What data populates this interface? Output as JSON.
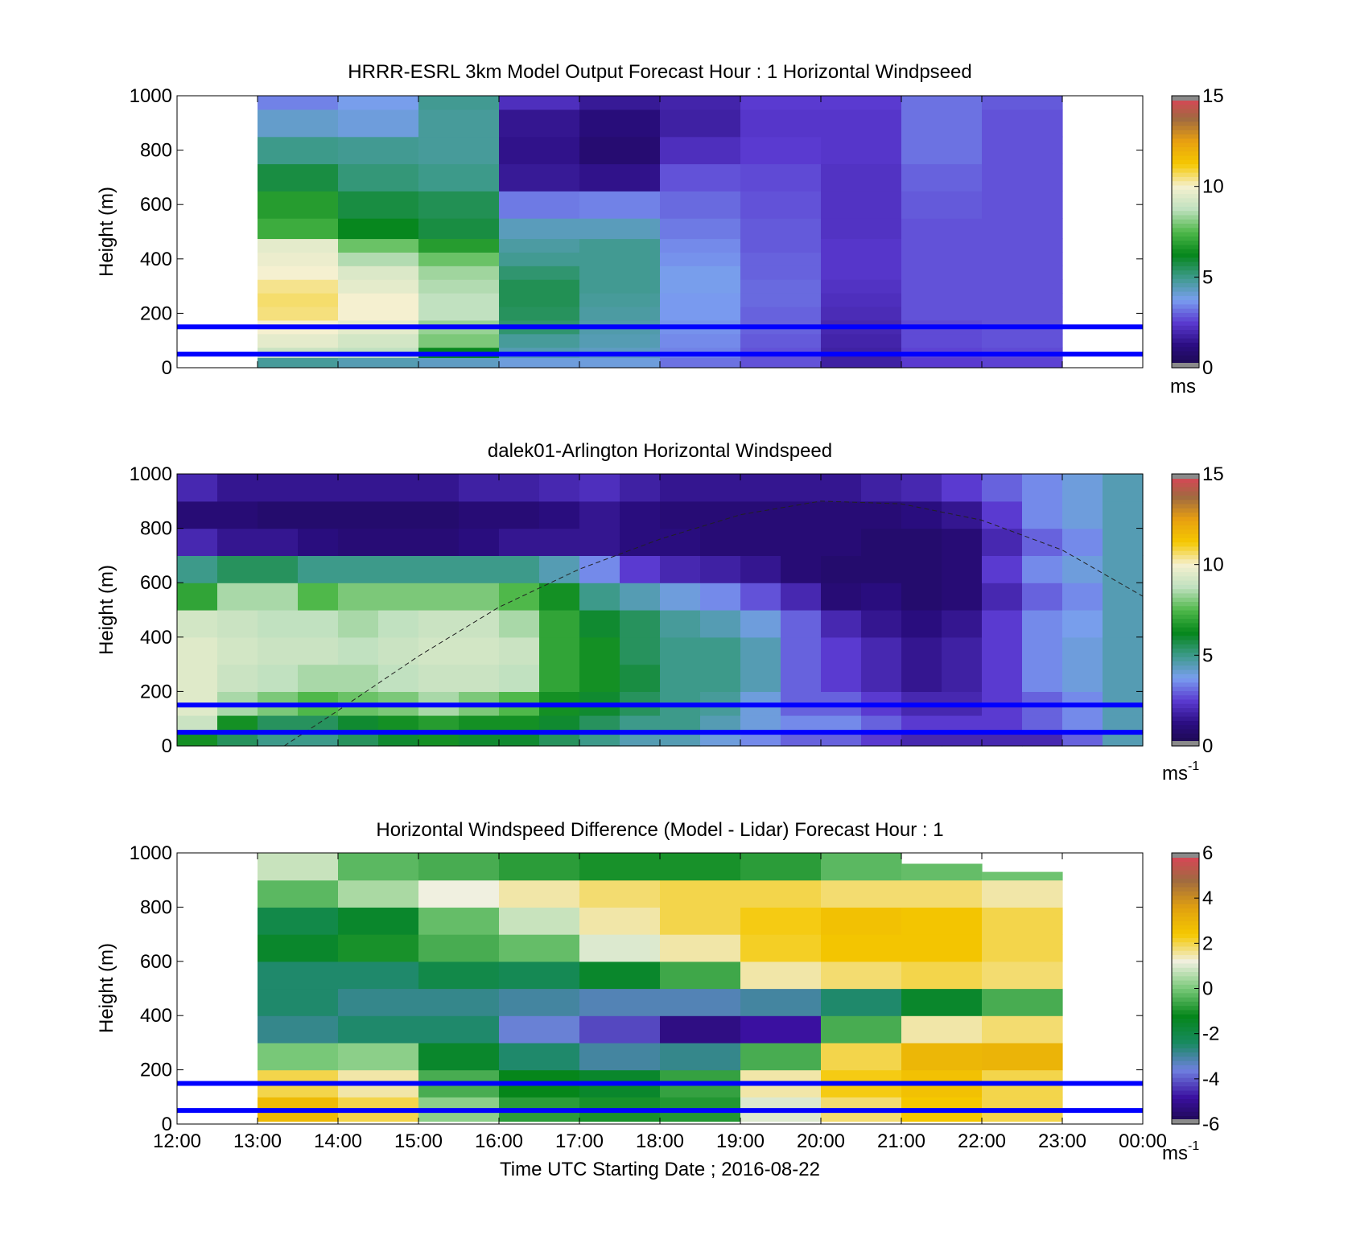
{
  "figure": {
    "xlabel": "Time UTC  Starting Date ; 2016-08-22",
    "x_tick_labels": [
      "12:00",
      "13:00",
      "14:00",
      "15:00",
      "16:00",
      "17:00",
      "18:00",
      "19:00",
      "20:00",
      "21:00",
      "22:00",
      "23:00",
      "00:00"
    ]
  },
  "colors": {
    "ref_line": "#0000ff",
    "speed_scale": [
      "#1a0a4a",
      "#2a0d80",
      "#5a3ad0",
      "#7a9ef0",
      "#3d9a8a",
      "#05861a",
      "#4fb84a",
      "#bfe0bf",
      "#f5f0d0",
      "#f5c800",
      "#e8a010",
      "#a06a40",
      "#e0405a"
    ],
    "diff_scale": [
      "#1a0a4a",
      "#3a10a0",
      "#7080e0",
      "#188a60",
      "#05861a",
      "#78c878",
      "#f0f0e0",
      "#f5c800",
      "#e0a010",
      "#a06a40",
      "#e0405a"
    ]
  },
  "chart_data": [
    {
      "id": "model",
      "type": "heatmap",
      "title": "HRRR-ESRL 3km Model Output   Forecast Hour : 1 Horizontal Windpseed",
      "ylabel": "Height (m)",
      "xlim": [
        "12:00",
        "00:00"
      ],
      "ylim": [
        0,
        1000
      ],
      "y_ticks": [
        0,
        200,
        400,
        600,
        800,
        1000
      ],
      "x_step_hours": 1,
      "columns_start": [
        "13:00",
        "14:00",
        "15:00",
        "16:00",
        "17:00",
        "18:00",
        "19:00",
        "20:00",
        "21:00",
        "22:00"
      ],
      "heights": [
        25,
        50,
        100,
        150,
        200,
        250,
        300,
        350,
        400,
        450,
        500,
        600,
        700,
        800,
        900,
        1000
      ],
      "values": [
        [
          4.8,
          4.5,
          4.3,
          4.0,
          4.0,
          3.2,
          2.8,
          1.8,
          2.5,
          2.6
        ],
        [
          9.0,
          8.8,
          6.2,
          4.5,
          4.3,
          3.4,
          2.8,
          1.8,
          2.6,
          2.7
        ],
        [
          9.6,
          9.2,
          8.0,
          4.8,
          4.5,
          3.5,
          2.9,
          1.9,
          2.7,
          2.8
        ],
        [
          10.0,
          9.6,
          8.3,
          5.3,
          4.6,
          3.6,
          3.0,
          2.0,
          2.7,
          2.8
        ],
        [
          10.5,
          10.0,
          8.8,
          5.5,
          4.7,
          3.7,
          3.0,
          2.1,
          2.8,
          2.8
        ],
        [
          10.6,
          10.0,
          8.8,
          5.6,
          4.8,
          3.7,
          3.1,
          2.2,
          2.8,
          2.8
        ],
        [
          10.4,
          9.6,
          8.6,
          5.6,
          4.9,
          3.8,
          3.1,
          2.3,
          2.8,
          2.8
        ],
        [
          10.0,
          9.4,
          8.4,
          5.3,
          4.9,
          3.8,
          3.0,
          2.4,
          2.8,
          2.8
        ],
        [
          9.8,
          8.6,
          7.8,
          4.9,
          4.9,
          3.6,
          3.0,
          2.4,
          2.8,
          2.8
        ],
        [
          9.6,
          7.8,
          6.8,
          4.7,
          4.9,
          3.5,
          2.9,
          2.4,
          2.8,
          2.8
        ],
        [
          7.2,
          6.2,
          5.8,
          4.4,
          4.4,
          3.3,
          2.9,
          2.3,
          2.8,
          2.8
        ],
        [
          6.8,
          5.8,
          5.6,
          3.3,
          3.4,
          3.1,
          2.8,
          2.3,
          2.9,
          2.8
        ],
        [
          5.8,
          5.2,
          5.0,
          1.6,
          1.4,
          2.8,
          2.7,
          2.3,
          3.0,
          2.8
        ],
        [
          5.0,
          4.9,
          4.8,
          1.4,
          0.9,
          2.2,
          2.5,
          2.4,
          3.2,
          2.8
        ],
        [
          4.2,
          4.0,
          4.8,
          1.5,
          1.1,
          1.8,
          2.4,
          2.4,
          3.2,
          2.8
        ],
        [
          3.4,
          3.8,
          4.9,
          2.2,
          1.6,
          1.9,
          2.5,
          2.5,
          3.2,
          2.9
        ]
      ],
      "reference_lines_m": [
        50,
        150
      ],
      "colorbar": {
        "min": 0,
        "max": 15,
        "ticks": [
          0,
          5,
          10,
          15
        ],
        "unit": "ms"
      }
    },
    {
      "id": "lidar",
      "type": "heatmap",
      "title": "dalek01-Arlington  Horizontal Windspeed",
      "ylabel": "Height (m)",
      "xlim": [
        "12:00",
        "00:00"
      ],
      "ylim": [
        0,
        1000
      ],
      "y_ticks": [
        0,
        200,
        400,
        600,
        800,
        1000
      ],
      "times": [
        "12:00",
        "12:30",
        "13:00",
        "13:30",
        "14:00",
        "14:30",
        "15:00",
        "15:30",
        "16:00",
        "16:30",
        "17:00",
        "17:30",
        "18:00",
        "18:30",
        "19:00",
        "19:30",
        "20:00",
        "20:30",
        "21:00",
        "21:30",
        "22:00",
        "22:30",
        "23:00",
        "23:30"
      ],
      "heights": [
        25,
        75,
        150,
        250,
        350,
        450,
        550,
        650,
        750,
        850,
        950
      ],
      "values": [
        [
          6.5,
          5.5,
          5.0,
          5.0,
          5.5,
          6.0,
          6.5,
          6.0,
          6.0,
          5.5,
          5.0,
          4.5,
          4.5,
          4.0,
          3.5,
          3.0,
          3.0,
          2.5,
          2.0,
          2.0,
          2.0,
          2.0,
          3.0,
          4.5
        ],
        [
          9.0,
          6.5,
          5.5,
          5.5,
          6.0,
          6.5,
          6.8,
          6.5,
          6.5,
          6.0,
          5.5,
          5.0,
          5.0,
          4.5,
          4.0,
          3.5,
          3.5,
          3.0,
          2.5,
          2.5,
          2.5,
          3.0,
          3.5,
          4.5
        ],
        [
          9.5,
          8.5,
          8.0,
          7.5,
          7.8,
          8.0,
          8.5,
          8.0,
          7.5,
          6.5,
          6.0,
          5.5,
          5.0,
          4.8,
          4.0,
          3.0,
          3.0,
          2.5,
          2.0,
          2.0,
          2.5,
          3.0,
          3.5,
          4.5
        ],
        [
          9.5,
          9.0,
          8.8,
          8.5,
          8.5,
          8.8,
          9.0,
          9.0,
          8.8,
          7.0,
          6.5,
          5.8,
          5.0,
          5.0,
          4.5,
          3.0,
          2.5,
          2.0,
          1.5,
          1.8,
          2.5,
          3.5,
          4.0,
          4.5
        ],
        [
          9.5,
          9.2,
          9.0,
          9.0,
          8.8,
          9.0,
          9.2,
          9.2,
          9.0,
          7.0,
          6.5,
          5.5,
          5.0,
          5.0,
          4.5,
          3.0,
          2.5,
          2.0,
          1.5,
          1.8,
          2.5,
          3.5,
          4.0,
          4.5
        ],
        [
          9.2,
          9.0,
          8.8,
          8.8,
          8.5,
          8.8,
          9.0,
          9.0,
          8.5,
          7.0,
          6.0,
          5.5,
          4.8,
          4.5,
          4.0,
          3.0,
          2.0,
          1.5,
          1.2,
          1.5,
          2.5,
          3.5,
          3.8,
          4.5
        ],
        [
          7.0,
          8.5,
          8.5,
          7.5,
          8.0,
          8.0,
          8.0,
          8.0,
          7.5,
          6.5,
          5.0,
          4.5,
          4.0,
          3.5,
          2.8,
          2.0,
          1.0,
          1.2,
          0.8,
          1.0,
          2.0,
          3.0,
          3.5,
          4.5
        ],
        [
          5.0,
          5.5,
          5.5,
          5.0,
          5.0,
          5.0,
          5.0,
          5.0,
          5.0,
          4.5,
          3.5,
          2.5,
          2.0,
          1.8,
          1.5,
          1.0,
          0.8,
          0.8,
          0.8,
          1.0,
          2.5,
          3.5,
          4.0,
          4.5
        ],
        [
          2.0,
          1.5,
          1.5,
          1.2,
          1.0,
          1.0,
          1.0,
          1.2,
          1.5,
          1.5,
          1.5,
          1.2,
          1.2,
          1.0,
          1.0,
          1.0,
          1.0,
          0.8,
          0.8,
          1.0,
          2.0,
          3.0,
          3.5,
          4.5
        ],
        [
          1.0,
          1.0,
          0.8,
          0.8,
          0.8,
          0.8,
          0.8,
          1.0,
          1.0,
          1.2,
          1.5,
          1.2,
          1.0,
          1.0,
          1.0,
          1.0,
          1.0,
          1.0,
          1.2,
          1.5,
          2.5,
          3.5,
          4.0,
          4.5
        ],
        [
          2.0,
          1.5,
          1.5,
          1.5,
          1.5,
          1.5,
          1.5,
          1.8,
          1.8,
          2.0,
          2.2,
          1.8,
          1.5,
          1.5,
          1.5,
          1.5,
          1.5,
          1.8,
          2.0,
          2.5,
          3.0,
          3.5,
          4.0,
          4.5
        ]
      ],
      "overlay_curve": {
        "style": "dashed",
        "x": [
          "13:20",
          "14:00",
          "15:00",
          "16:00",
          "17:00",
          "18:00",
          "19:00",
          "20:00",
          "21:00",
          "22:00",
          "23:00",
          "00:00"
        ],
        "y": [
          0,
          130,
          330,
          510,
          650,
          760,
          850,
          900,
          890,
          830,
          720,
          550
        ]
      },
      "reference_lines_m": [
        50,
        150
      ],
      "colorbar": {
        "min": 0,
        "max": 15,
        "ticks": [
          0,
          5,
          10,
          15
        ],
        "unit": "ms",
        "unit_exponent": "-1"
      }
    },
    {
      "id": "difference",
      "type": "heatmap",
      "title": "Horizontal Windspeed Difference (Model - Lidar) Forecast Hour : 1",
      "ylabel": "Height (m)",
      "xlim": [
        "12:00",
        "00:00"
      ],
      "ylim": [
        0,
        1000
      ],
      "y_ticks": [
        0,
        200,
        400,
        600,
        800,
        1000
      ],
      "x_step_hours": 1,
      "columns_start": [
        "13:00",
        "14:00",
        "15:00",
        "16:00",
        "17:00",
        "18:00",
        "19:00",
        "20:00",
        "21:00",
        "22:00"
      ],
      "column_tops_m": [
        1000,
        1000,
        1000,
        1000,
        1000,
        1000,
        1000,
        1000,
        960,
        930
      ],
      "heights": [
        50,
        150,
        250,
        350,
        450,
        550,
        650,
        750,
        850,
        950
      ],
      "values": [
        [
          2.8,
          2.0,
          0.2,
          -0.8,
          -1.0,
          -0.9,
          1.0,
          1.8,
          2.4,
          2.0
        ],
        [
          2.0,
          1.5,
          -0.5,
          -1.2,
          -1.5,
          -0.7,
          1.5,
          2.3,
          2.6,
          2.0
        ],
        [
          0.0,
          0.2,
          -1.5,
          -2.5,
          -3.0,
          -2.8,
          -0.5,
          2.0,
          2.9,
          3.0
        ],
        [
          -2.8,
          -2.5,
          -2.5,
          -3.5,
          -4.2,
          -5.2,
          -4.8,
          -0.5,
          1.5,
          1.8
        ],
        [
          -2.5,
          -2.8,
          -2.8,
          -3.0,
          -3.2,
          -3.2,
          -3.0,
          -2.5,
          -1.5,
          -0.5
        ],
        [
          -2.5,
          -2.5,
          -2.0,
          -2.2,
          -1.5,
          -0.6,
          1.5,
          1.8,
          2.0,
          1.8
        ],
        [
          -1.5,
          -1.0,
          -0.5,
          -0.2,
          1.0,
          1.5,
          2.2,
          2.5,
          2.5,
          2.0
        ],
        [
          -2.0,
          -1.5,
          -0.2,
          0.8,
          1.5,
          2.0,
          2.3,
          2.6,
          2.5,
          2.0
        ],
        [
          -0.3,
          0.5,
          1.2,
          1.5,
          1.8,
          2.0,
          2.0,
          1.8,
          1.8,
          1.5
        ],
        [
          0.8,
          -0.3,
          -0.5,
          -0.8,
          -1.0,
          -1.0,
          -0.8,
          -0.3,
          -0.2,
          -0.1
        ]
      ],
      "reference_lines_m": [
        50,
        150
      ],
      "colorbar": {
        "min": -6,
        "max": 6,
        "ticks": [
          -6,
          -4,
          -2,
          0,
          2,
          4,
          6
        ],
        "unit": "ms",
        "unit_exponent": "-1"
      }
    }
  ]
}
